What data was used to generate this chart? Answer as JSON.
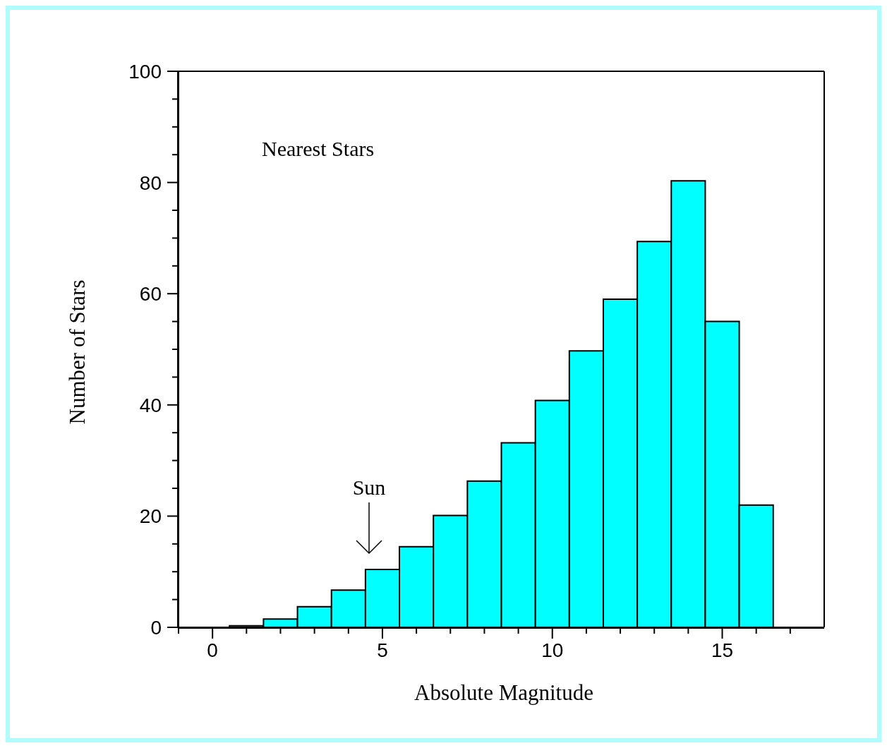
{
  "chart_data": {
    "type": "histogram",
    "xlabel": "Absolute Magnitude",
    "ylabel": "Number of Stars",
    "bins": [
      0.5,
      1.5,
      2.5,
      3.5,
      4.5,
      5.5,
      6.5,
      7.5,
      8.5,
      9.5,
      10.5,
      11.5,
      12.5,
      13.5,
      14.5,
      15.5,
      16.5
    ],
    "values": [
      0.3,
      1.5,
      3.7,
      6.7,
      10.4,
      14.5,
      20.1,
      26.3,
      33.2,
      40.8,
      49.7,
      59.0,
      69.4,
      80.3,
      55.0,
      22.0
    ],
    "color": "#00ffff",
    "xlim": [
      -1,
      18
    ],
    "xticks": [
      {
        "value": -1,
        "label": null
      },
      0,
      {
        "value": 1,
        "label": null
      },
      {
        "value": 2,
        "label": null
      },
      {
        "value": 3,
        "label": null
      },
      {
        "value": 4,
        "label": null
      },
      5,
      {
        "value": 6,
        "label": null
      },
      {
        "value": 7,
        "label": null
      },
      {
        "value": 8,
        "label": null
      },
      {
        "value": 9,
        "label": null
      },
      10,
      {
        "value": 11,
        "label": null
      },
      {
        "value": 12,
        "label": null
      },
      {
        "value": 13,
        "label": null
      },
      {
        "value": 14,
        "label": null
      },
      15,
      {
        "value": 16,
        "label": null
      },
      {
        "value": 17,
        "label": null
      }
    ],
    "ylim": [
      0,
      100
    ],
    "yticks": [
      0,
      {
        "value": 5,
        "label": null
      },
      {
        "value": 10,
        "label": null
      },
      {
        "value": 15,
        "label": null
      },
      20,
      {
        "value": 25,
        "label": null
      },
      {
        "value": 30,
        "label": null
      },
      {
        "value": 35,
        "label": null
      },
      40,
      {
        "value": 45,
        "label": null
      },
      {
        "value": 50,
        "label": null
      },
      {
        "value": 55,
        "label": null
      },
      60,
      {
        "value": 65,
        "label": null
      },
      {
        "value": 70,
        "label": null
      },
      {
        "value": 75,
        "label": null
      },
      80,
      {
        "value": 85,
        "label": null
      },
      {
        "value": 90,
        "label": null
      },
      {
        "value": 95,
        "label": null
      },
      100
    ],
    "grid": false,
    "annotations": [
      "Nearest Stars",
      "Sun"
    ]
  }
}
